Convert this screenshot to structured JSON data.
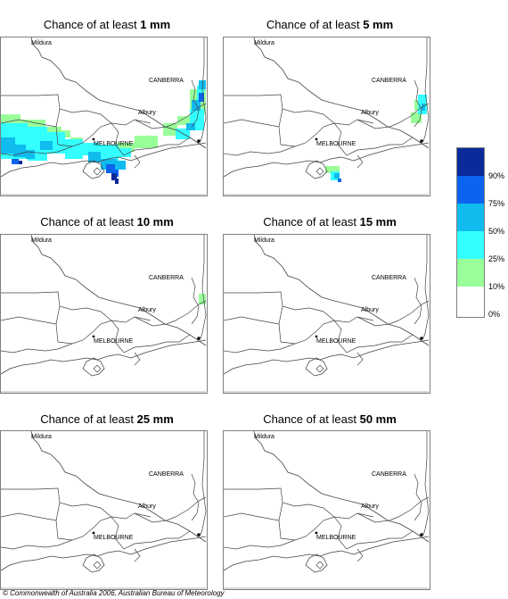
{
  "panels": [
    {
      "prefix": "Chance of at least ",
      "amount": "1 mm"
    },
    {
      "prefix": "Chance of at least ",
      "amount": "5 mm"
    },
    {
      "prefix": "Chance of at least ",
      "amount": "10 mm"
    },
    {
      "prefix": "Chance of at least ",
      "amount": "15 mm"
    },
    {
      "prefix": "Chance of at least ",
      "amount": "25 mm"
    },
    {
      "prefix": "Chance of at least ",
      "amount": "50 mm"
    }
  ],
  "places": {
    "mildura": "Mildura",
    "canberra": "CANBERRA",
    "albury": "Albury",
    "melbourne": "MELBOURNE"
  },
  "legend": {
    "labels": [
      "90%",
      "75%",
      "50%",
      "25%",
      "10%",
      "0%"
    ],
    "colors": [
      "#0a2a9a",
      "#0a64ee",
      "#10bbee",
      "#33ffff",
      "#99ff99",
      "#ffffff"
    ]
  },
  "copyright": "© Commonwealth of Australia 2006, Australian Bureau of Meteorology"
}
